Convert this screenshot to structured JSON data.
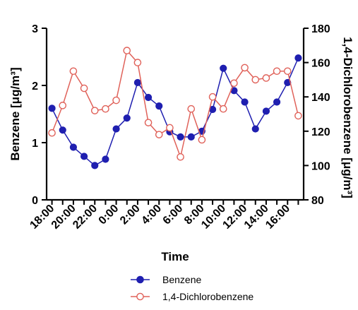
{
  "chart_data": {
    "type": "line",
    "xlabel": "Time",
    "ylabel_left": "Benzene [μg/m³]",
    "ylabel_right": "1,4-Dichlorobenzene [μg/m³]",
    "x_tick_labels": [
      "18:00",
      "20:00",
      "22:00",
      "0:00",
      "2:00",
      "4:00",
      "6:00",
      "8:00",
      "10:00",
      "12:00",
      "14:00",
      "16:00"
    ],
    "x_positions": [
      "18:00",
      "19:00",
      "20:00",
      "21:00",
      "22:00",
      "23:00",
      "0:00",
      "1:00",
      "2:00",
      "3:00",
      "4:00",
      "5:00",
      "6:00",
      "7:00",
      "8:00",
      "9:00",
      "10:00",
      "11:00",
      "12:00",
      "13:00",
      "14:00",
      "15:00",
      "16:00",
      "17:00"
    ],
    "y_left": {
      "min": 0,
      "max": 3,
      "ticks": [
        0,
        1,
        2,
        3
      ]
    },
    "y_right": {
      "min": 80,
      "max": 180,
      "ticks": [
        80,
        100,
        120,
        140,
        160,
        180
      ]
    },
    "legend_position": "bottom",
    "series": [
      {
        "name": "Benzene",
        "axis": "left",
        "color": "#1f1fb0",
        "marker": "filled-circle",
        "values": [
          1.6,
          1.22,
          0.92,
          0.76,
          0.6,
          0.71,
          1.24,
          1.43,
          2.05,
          1.79,
          1.64,
          1.19,
          1.1,
          1.1,
          1.2,
          1.58,
          2.3,
          1.91,
          1.71,
          1.24,
          1.55,
          1.71,
          2.05,
          2.48
        ]
      },
      {
        "name": "1,4-Dichlorobenzene",
        "axis": "right",
        "color": "#e0625a",
        "marker": "open-circle",
        "values": [
          119,
          135,
          155,
          145,
          132,
          133,
          138,
          167,
          160,
          125,
          118,
          122,
          105,
          133,
          115,
          140,
          133,
          148,
          157,
          150,
          151,
          155,
          155,
          129
        ]
      }
    ]
  }
}
